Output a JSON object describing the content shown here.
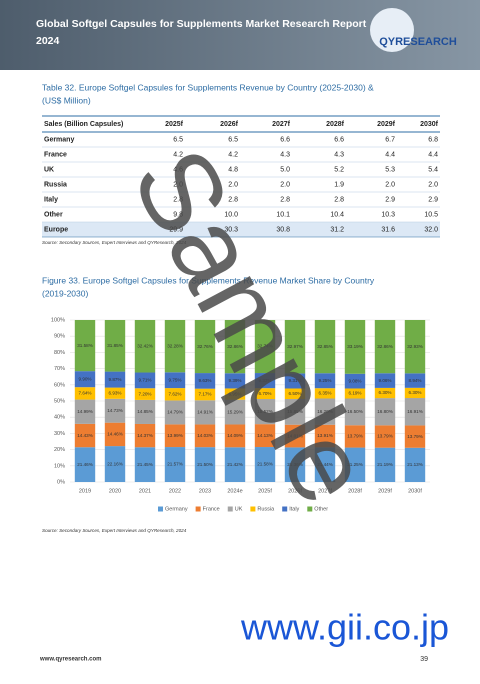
{
  "header": {
    "title_lines": [
      "Global Softgel Capsules for Supplements Market Research Report",
      "2024"
    ],
    "logo": "QYRESEARCH"
  },
  "table": {
    "title_lines": [
      "Table 32.  Europe Softgel Capsules for Supplements Revenue by Country (2025-2030) &",
      "(US$ Million)"
    ],
    "columns": [
      "Sales (Billion Capsules)",
      "2025f",
      "2026f",
      "2027f",
      "2028f",
      "2029f",
      "2030f"
    ],
    "rows": [
      [
        "Germany",
        "6.5",
        "6.5",
        "6.6",
        "6.6",
        "6.7",
        "6.8"
      ],
      [
        "France",
        "4.2",
        "4.2",
        "4.3",
        "4.3",
        "4.4",
        "4.4"
      ],
      [
        "UK",
        "4.6",
        "4.8",
        "5.0",
        "5.2",
        "5.3",
        "5.4"
      ],
      [
        "Russia",
        "2.0",
        "2.0",
        "2.0",
        "1.9",
        "2.0",
        "2.0"
      ],
      [
        "Italy",
        "2.8",
        "2.8",
        "2.8",
        "2.8",
        "2.9",
        "2.9"
      ],
      [
        "Other",
        "9.8",
        "10.0",
        "10.1",
        "10.4",
        "10.3",
        "10.5"
      ],
      [
        "Europe",
        "29.9",
        "30.3",
        "30.8",
        "31.2",
        "31.6",
        "32.0"
      ]
    ],
    "source": "Source: Secondary Sources, Expert Interviews and QYResearch, 2024"
  },
  "figure": {
    "title_lines": [
      "Figure 33.  Europe Softgel Capsules for Supplements Revenue Market Share by Country",
      "(2019-2030)"
    ],
    "chart": {
      "type": "stacked-bar",
      "categories": [
        "2019",
        "2020",
        "2021",
        "2022",
        "2023",
        "2024e",
        "2025f",
        "2026f",
        "2027f",
        "2028f",
        "2029f",
        "2030f"
      ],
      "ylim": [
        0,
        100
      ],
      "yticks": [
        {
          "value": 0,
          "label": "0%"
        },
        {
          "value": 10,
          "label": "10%"
        },
        {
          "value": 20,
          "label": "20%"
        },
        {
          "value": 30,
          "label": "30%"
        },
        {
          "value": 40,
          "label": "40%"
        },
        {
          "value": 50,
          "label": "50%"
        },
        {
          "value": 60,
          "label": "60%"
        },
        {
          "value": 70,
          "label": "70%"
        },
        {
          "value": 80,
          "label": "80%"
        },
        {
          "value": 90,
          "label": "90%"
        },
        {
          "value": 100,
          "label": "100%"
        }
      ],
      "grid": true,
      "legend": "bottom",
      "series": [
        {
          "name": "Germany",
          "color": "#5b9bd5",
          "values": [
            21.46,
            22.16,
            21.45,
            21.57,
            21.5,
            21.42,
            21.58,
            21.36,
            21.44,
            21.25,
            21.19,
            21.13
          ],
          "value_labels": [
            "21.46%",
            "22.16%",
            "21.45%",
            "21.57%",
            "21.50%",
            "21.42%",
            "21.58%",
            "21.36%",
            "21.44%",
            "21.25%",
            "21.19%",
            "21.13%"
          ]
        },
        {
          "name": "France",
          "color": "#ed7d31",
          "values": [
            14.43,
            14.46,
            14.37,
            13.99,
            14.03,
            14.09,
            14.13,
            14.01,
            13.91,
            13.79,
            13.79,
            13.79
          ],
          "value_labels": [
            "14.43%",
            "14.46%",
            "14.37%",
            "13.99%",
            "14.03%",
            "14.09%",
            "14.13%",
            "14.01%",
            "13.91%",
            "13.79%",
            "13.79%",
            "13.79%"
          ]
        },
        {
          "name": "UK",
          "color": "#a5a5a5",
          "values": [
            14.99,
            14.73,
            14.85,
            14.79,
            14.91,
            15.29,
            15.52,
            15.85,
            16.2,
            16.5,
            16.8,
            16.91
          ],
          "value_labels": [
            "14.99%",
            "14.73%",
            "14.85%",
            "14.79%",
            "14.91%",
            "15.29%",
            "15.52%",
            "15.85%",
            "16.20%",
            "16.50%",
            "16.80%",
            "16.91%"
          ]
        },
        {
          "name": "Russia",
          "color": "#ffc000",
          "values": [
            7.64,
            6.93,
            7.2,
            7.62,
            7.17,
            6.95,
            6.7,
            6.5,
            6.35,
            6.19,
            6.3,
            6.3
          ],
          "value_labels": [
            "7.64%",
            "6.93%",
            "7.20%",
            "7.62%",
            "7.17%",
            "6.95%",
            "6.70%",
            "6.50%",
            "6.35%",
            "6.19%",
            "6.30%",
            "6.30%"
          ]
        },
        {
          "name": "Italy",
          "color": "#4472c4",
          "values": [
            9.9,
            9.87,
            9.71,
            9.75,
            9.63,
            9.39,
            9.33,
            9.31,
            9.25,
            9.08,
            9.06,
            8.94
          ],
          "value_labels": [
            "9.90%",
            "9.87%",
            "9.71%",
            "9.75%",
            "9.63%",
            "9.39%",
            "9.33%",
            "9.31%",
            "9.25%",
            "9.08%",
            "9.06%",
            "8.94%"
          ]
        },
        {
          "name": "Other",
          "color": "#70ad47",
          "values": [
            31.58,
            31.85,
            32.42,
            32.28,
            32.76,
            32.86,
            32.74,
            32.97,
            32.85,
            33.19,
            32.86,
            32.93
          ],
          "value_labels": [
            "31.58%",
            "31.85%",
            "32.42%",
            "32.28%",
            "32.76%",
            "32.86%",
            "32.74%",
            "32.97%",
            "32.85%",
            "33.19%",
            "32.86%",
            "32.93%"
          ]
        }
      ]
    },
    "source": "Source: Secondary Sources, Expert Interviews and QYResearch, 2024"
  },
  "watermarks": {
    "sample": "Sample",
    "site": "www.gii.co.jp"
  },
  "footer": {
    "url": "www.qyresearch.com",
    "page": "39"
  }
}
